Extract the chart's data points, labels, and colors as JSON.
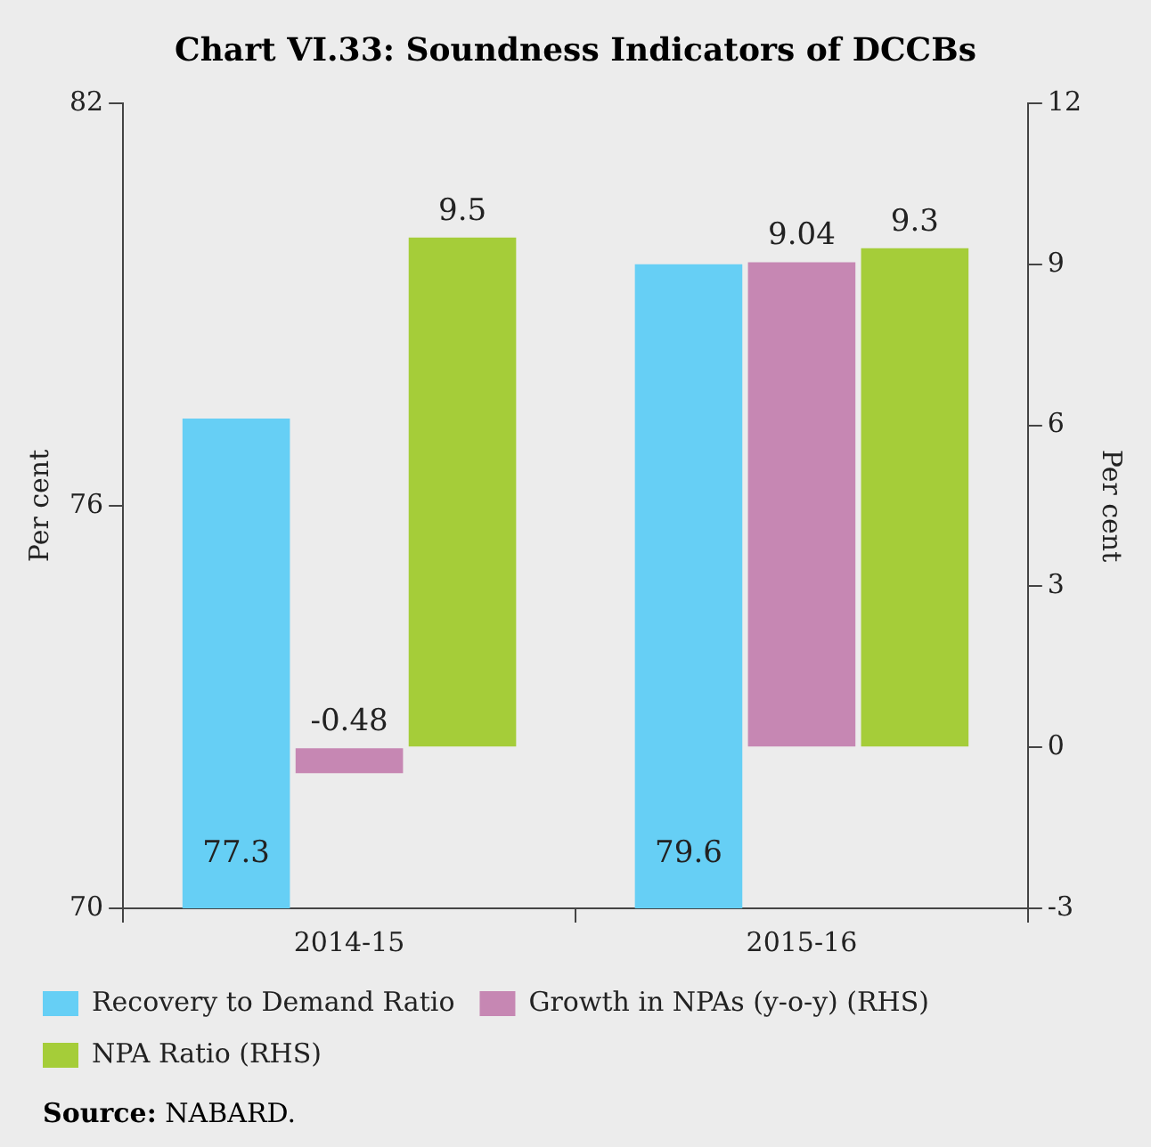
{
  "chart_data": {
    "type": "bar",
    "title": "Chart VI.33: Soundness Indicators of DCCBs",
    "categories": [
      "2014-15",
      "2015-16"
    ],
    "series": [
      {
        "name": "Recovery to Demand Ratio",
        "color": "#66cff5",
        "values": [
          77.3,
          79.6
        ]
      },
      {
        "name": "Growth in NPAs (y-o-y) (RHS)",
        "color": "#c687b3",
        "values": [
          -0.48,
          9.04
        ],
        "axis": "y2"
      },
      {
        "name": "NPA Ratio (RHS)",
        "color": "#a5cd39",
        "values": [
          9.5,
          9.3
        ],
        "axis": "y2"
      }
    ],
    "ylabel": "Per cent",
    "y2label": "Per cent",
    "ylim": [
      70,
      82
    ],
    "yticks": [
      70,
      76,
      82
    ],
    "y2lim": [
      -3,
      12
    ],
    "y2ticks": [
      -3,
      0,
      3,
      6,
      9,
      12
    ],
    "data_labels": true,
    "grid": false,
    "legend": "bottom",
    "annotations": [
      "Source: NABARD."
    ]
  }
}
